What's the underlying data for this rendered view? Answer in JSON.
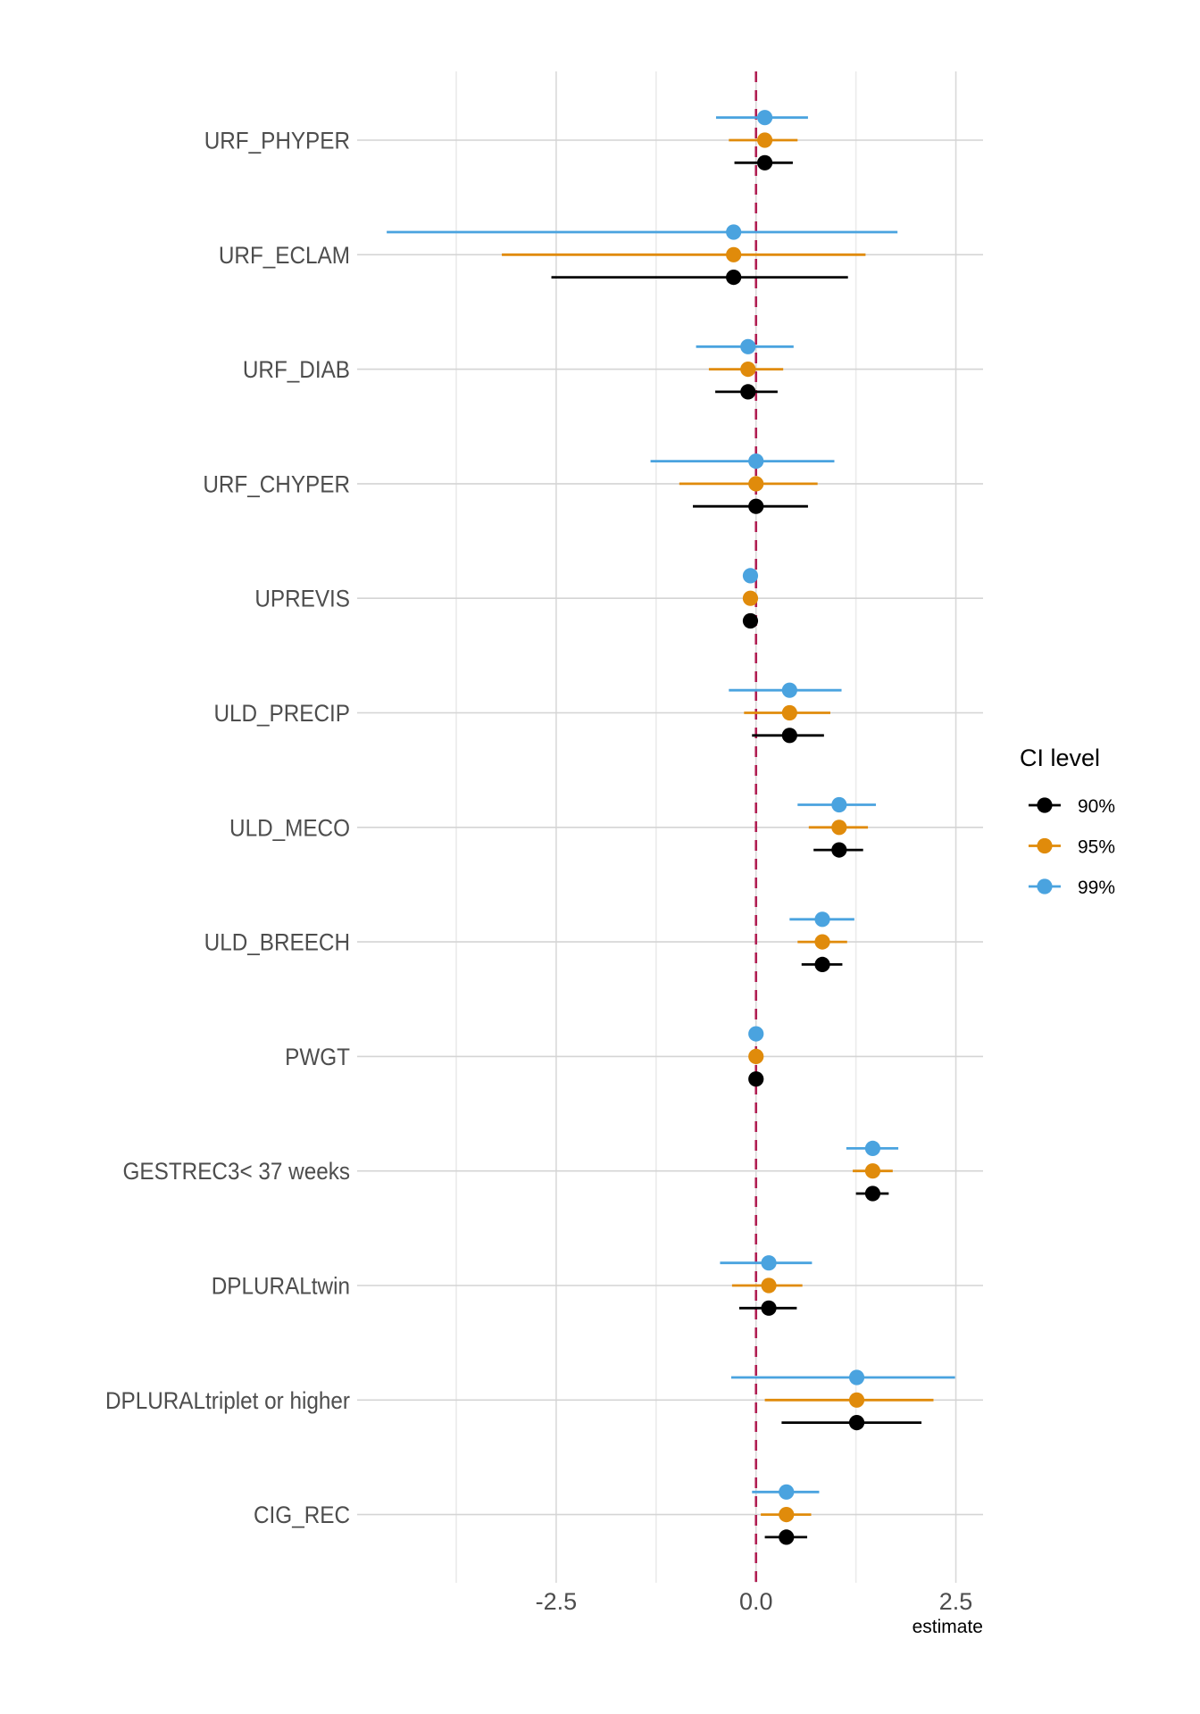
{
  "chart_data": {
    "type": "scatter",
    "subtype": "coefficient-plot-with-confidence-intervals",
    "title": "",
    "xlabel": "estimate",
    "ylabel": "",
    "xlim": [
      -4.99,
      2.84
    ],
    "x_ticks": [
      -2.5,
      0.0,
      2.5
    ],
    "x_tick_labels": [
      "-2.5",
      "0.0",
      "2.5"
    ],
    "x_minor_gridlines": [
      -3.75,
      -1.25,
      1.25
    ],
    "grid": true,
    "reference_line": {
      "x": 0,
      "style": "dashed",
      "color": "#b01e52"
    },
    "legend": {
      "title": "CI level",
      "position": "right",
      "entries": [
        {
          "label": "90%",
          "color": "#000000"
        },
        {
          "label": "95%",
          "color": "#e08b0b"
        },
        {
          "label": "99%",
          "color": "#4aa3df"
        }
      ]
    },
    "categories": [
      "URF_PHYPER",
      "URF_ECLAM",
      "URF_DIAB",
      "URF_CHYPER",
      "UPREVIS",
      "ULD_PRECIP",
      "ULD_MECO",
      "ULD_BREECH",
      "PWGT",
      "GESTREC3< 37 weeks",
      "DPLURALtwin",
      "DPLURALtriplet or higher",
      "CIG_REC"
    ],
    "estimates": [
      0.11,
      -0.28,
      -0.1,
      0.0,
      -0.07,
      0.42,
      1.04,
      0.83,
      0.0,
      1.46,
      0.16,
      1.26,
      0.38
    ],
    "series": [
      {
        "name": "90%",
        "color": "#000000",
        "low": [
          -0.27,
          -2.56,
          -0.51,
          -0.79,
          -0.09,
          -0.05,
          0.72,
          0.57,
          -0.01,
          1.25,
          -0.21,
          0.32,
          0.11
        ],
        "high": [
          0.46,
          1.15,
          0.27,
          0.65,
          -0.05,
          0.85,
          1.34,
          1.08,
          0.01,
          1.66,
          0.51,
          2.07,
          0.64
        ]
      },
      {
        "name": "95%",
        "color": "#e08b0b",
        "low": [
          -0.34,
          -3.18,
          -0.59,
          -0.96,
          -0.1,
          -0.15,
          0.66,
          0.52,
          -0.01,
          1.21,
          -0.3,
          0.11,
          0.06
        ],
        "high": [
          0.52,
          1.37,
          0.34,
          0.77,
          -0.04,
          0.93,
          1.4,
          1.14,
          0.01,
          1.71,
          0.58,
          2.22,
          0.69
        ]
      },
      {
        "name": "99%",
        "color": "#4aa3df",
        "low": [
          -0.5,
          -4.62,
          -0.75,
          -1.32,
          -0.11,
          -0.34,
          0.52,
          0.42,
          -0.02,
          1.13,
          -0.45,
          -0.31,
          -0.05
        ],
        "high": [
          0.65,
          1.77,
          0.47,
          0.98,
          -0.03,
          1.07,
          1.5,
          1.23,
          0.02,
          1.78,
          0.7,
          2.49,
          0.79
        ]
      }
    ]
  }
}
